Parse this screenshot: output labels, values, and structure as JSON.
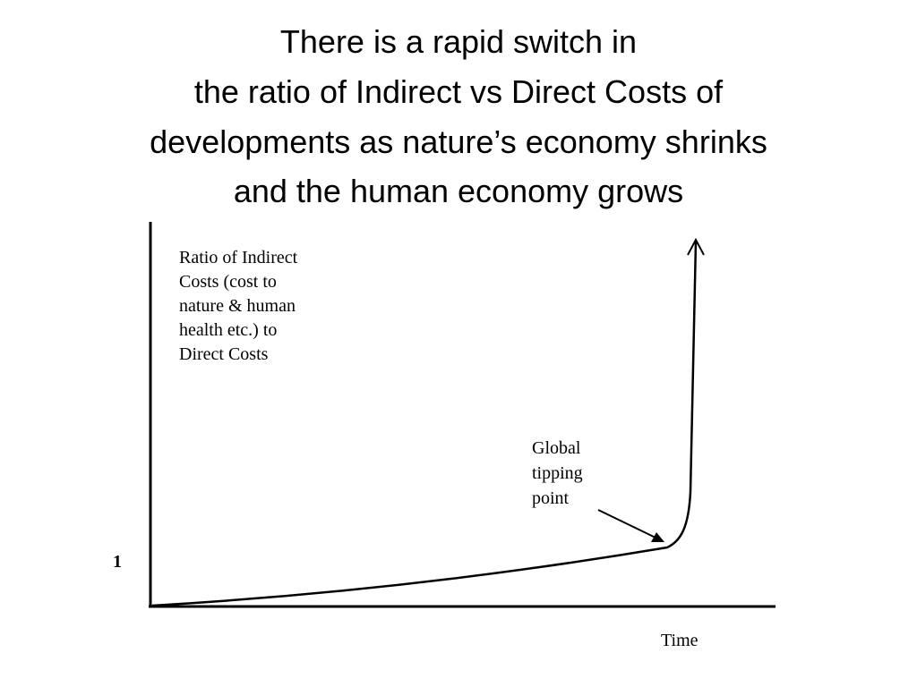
{
  "title": {
    "lines": [
      "There is a rapid switch in",
      "the ratio of Indirect vs Direct Costs of",
      "developments as nature’s economy shrinks",
      "and the human economy grows"
    ]
  },
  "y_axis_label": {
    "lines": [
      "Ratio of Indirect",
      "Costs (cost to",
      "nature & human",
      "health etc.) to",
      "Direct Costs"
    ]
  },
  "annotation": {
    "lines": [
      "Global",
      "tipping",
      "point"
    ]
  },
  "y_tick": "1",
  "x_axis_label": "Time"
}
